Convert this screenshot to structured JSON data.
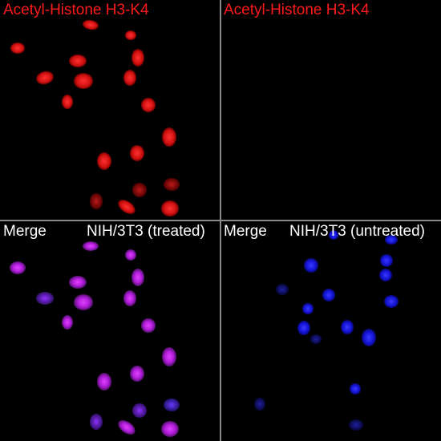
{
  "panels": {
    "top_left": {
      "label": "Acetyl-Histone H3-K4",
      "label_color": "#ff1a1a"
    },
    "top_right": {
      "label": "Acetyl-Histone H3-K4",
      "label_color": "#ff1a1a"
    },
    "bottom_left": {
      "label_left": "Merge",
      "label_right": "NIH/3T3 (treated)"
    },
    "bottom_right": {
      "label_left": "Merge",
      "label_right": "NIH/3T3 (untreated)"
    }
  },
  "colors": {
    "background": "#000000",
    "divider": "#8a8a8a",
    "red_stain": "#d81414",
    "merge_magenta": "#c020d0",
    "dapi_blue": "#1a1aff"
  }
}
